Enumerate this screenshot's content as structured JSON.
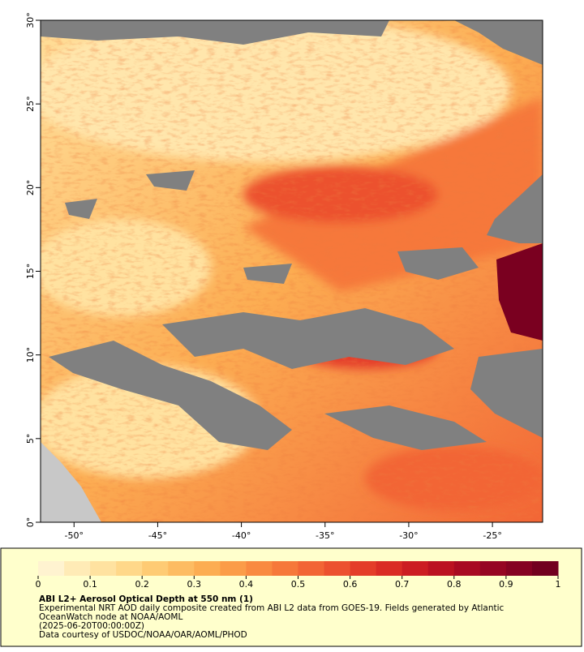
{
  "map": {
    "lon_range": [
      -52,
      -22
    ],
    "lat_range": [
      0,
      30
    ],
    "lon_ticks": [
      {
        "value": -50,
        "label": "-50°"
      },
      {
        "value": -45,
        "label": "-45°"
      },
      {
        "value": -40,
        "label": "-40°"
      },
      {
        "value": -35,
        "label": "-35°"
      },
      {
        "value": -30,
        "label": "-30°"
      },
      {
        "value": -25,
        "label": "-25°"
      }
    ],
    "lat_ticks": [
      {
        "value": 0,
        "label": "0°"
      },
      {
        "value": 5,
        "label": "5°"
      },
      {
        "value": 10,
        "label": "10°"
      },
      {
        "value": 15,
        "label": "15°"
      },
      {
        "value": 20,
        "label": "20°"
      },
      {
        "value": 25,
        "label": "25°"
      },
      {
        "value": 30,
        "label": "30°"
      }
    ]
  },
  "colorbar": {
    "range": [
      0,
      1
    ],
    "ticks": [
      0,
      0.1,
      0.2,
      0.3,
      0.4,
      0.5,
      0.6,
      0.7,
      0.8,
      0.9,
      1
    ],
    "colors": [
      "#fff3d0",
      "#ffebb6",
      "#ffe2a0",
      "#ffd88a",
      "#fecb74",
      "#fdbc62",
      "#fcad52",
      "#fb9c48",
      "#f98a40",
      "#f6783a",
      "#f26535",
      "#ec512f",
      "#e43d29",
      "#da2c25",
      "#cc1d22",
      "#bb1221",
      "#a80a22",
      "#960523",
      "#850222",
      "#72001f"
    ]
  },
  "caption": {
    "title": "ABI L2+ Aerosol Optical Depth at 550 nm (1)",
    "description": [
      "Experimental NRT AOD daily composite created from ABI L2 data from GOES-19. Fields generated by Atlantic",
      "OceanWatch node at NOAA/AOML"
    ],
    "timestamp": "(2025-06-20T00:00:00Z)",
    "credit": "Data courtesy of USDOC/NOAA/OAR/AOML/PHOD"
  }
}
